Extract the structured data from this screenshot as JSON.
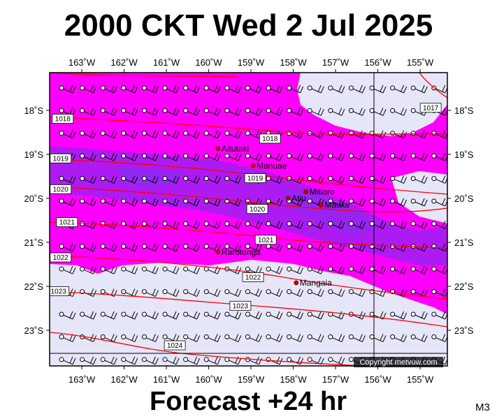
{
  "header": {
    "title": "2000 CKT Wed 2 Jul 2025"
  },
  "footer": {
    "forecast": "Forecast +24 hr",
    "model": "M3",
    "copyright": "Copyright metvuw.com"
  },
  "map": {
    "lon_labels": [
      "163˚W",
      "162˚W",
      "161˚W",
      "160˚W",
      "159˚W",
      "158˚W",
      "157˚W",
      "156˚W",
      "155˚W"
    ],
    "lon_values": [
      -163,
      -162,
      -161,
      -160,
      -159,
      -158,
      -157,
      -156,
      -155
    ],
    "lat_labels": [
      "18˚S",
      "19˚S",
      "20˚S",
      "21˚S",
      "22˚S",
      "23˚S"
    ],
    "lat_values": [
      -18,
      -19,
      -20,
      -21,
      -22,
      -23
    ],
    "colors": {
      "light": "#e6e6f9",
      "magenta": "#ff00ff",
      "purple": "#a020f0",
      "violet": "#8b2cf0",
      "isobar": "#ff0000",
      "place_dot": "#cc0000"
    },
    "places": [
      {
        "name": "Aitutaki",
        "lon": -159.78,
        "lat": -18.87
      },
      {
        "name": "Manuae",
        "lon": -158.95,
        "lat": -19.26
      },
      {
        "name": "Atiu",
        "lon": -158.12,
        "lat": -20.0
      },
      {
        "name": "Mitiaro",
        "lon": -157.7,
        "lat": -19.85
      },
      {
        "name": "Mauke",
        "lon": -157.34,
        "lat": -20.15
      },
      {
        "name": "Rarotonga",
        "lon": -159.78,
        "lat": -21.22
      },
      {
        "name": "Mangaia",
        "lon": -157.93,
        "lat": -21.92
      }
    ],
    "isobars": [
      {
        "label": "1017",
        "lon": -154.75,
        "lat": -17.95
      },
      {
        "label": "1018",
        "lon": -163.45,
        "lat": -18.2
      },
      {
        "label": "1018",
        "lon": -158.55,
        "lat": -18.65
      },
      {
        "label": "1019",
        "lon": -163.5,
        "lat": -19.1
      },
      {
        "label": "1019",
        "lon": -158.9,
        "lat": -19.55
      },
      {
        "label": "1020",
        "lon": -163.5,
        "lat": -19.8
      },
      {
        "label": "1020",
        "lon": -158.85,
        "lat": -20.25
      },
      {
        "label": "1021",
        "lon": -163.35,
        "lat": -20.55
      },
      {
        "label": "1021",
        "lon": -158.65,
        "lat": -20.95
      },
      {
        "label": "1022",
        "lon": -163.5,
        "lat": -21.35
      },
      {
        "label": "1022",
        "lon": -158.95,
        "lat": -21.8
      },
      {
        "label": "1023",
        "lon": -163.55,
        "lat": -22.12
      },
      {
        "label": "1023",
        "lon": -159.25,
        "lat": -22.45
      },
      {
        "label": "1024",
        "lon": -160.8,
        "lat": -23.35
      }
    ]
  }
}
